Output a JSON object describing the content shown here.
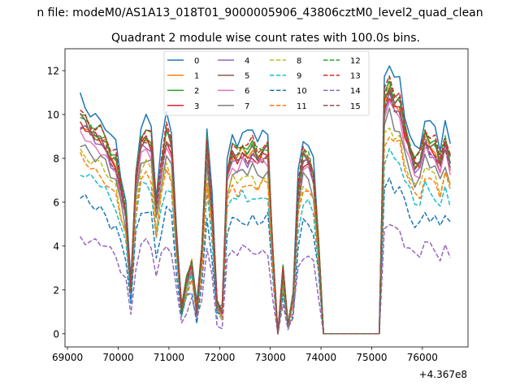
{
  "chart_data": {
    "type": "line",
    "suptitle": "n file: modeM0/AS1A13_018T01_9000005906_43806cztM0_level2_quad_clean",
    "title": "Quadrant 2 module wise count rates with 100.0s bins.",
    "xlabel": "",
    "ylabel": "",
    "x_offset_label": "+4.367e8",
    "xlim": [
      68950,
      76900
    ],
    "ylim": [
      -0.6,
      13
    ],
    "xticks": [
      69000,
      70000,
      71000,
      72000,
      73000,
      74000,
      75000,
      76000
    ],
    "yticks": [
      0,
      2,
      4,
      6,
      8,
      10,
      12
    ],
    "legend": {
      "placement": "top-center",
      "columns": 4
    },
    "x": [
      69250,
      69350,
      69450,
      69550,
      69650,
      69750,
      69850,
      69950,
      70050,
      70150,
      70250,
      70350,
      70450,
      70550,
      70650,
      70750,
      70850,
      70950,
      71050,
      71150,
      71250,
      71350,
      71450,
      71550,
      71650,
      71750,
      71850,
      71950,
      72050,
      72150,
      72250,
      72350,
      72450,
      72550,
      72650,
      72750,
      72850,
      72950,
      73050,
      73150,
      73250,
      73350,
      73450,
      73550,
      73650,
      73750,
      73850,
      73950,
      74050,
      74150,
      74250,
      74350,
      74450,
      74550,
      74650,
      74750,
      74850,
      74950,
      75050,
      75150,
      75250,
      75350,
      75450,
      75550,
      75650,
      75750,
      75850,
      75950,
      76050,
      76150,
      76250,
      76350,
      76450,
      76550
    ],
    "base_profile": [
      9.5,
      9.3,
      9.0,
      8.8,
      8.7,
      8.4,
      7.8,
      7.6,
      6.4,
      5.3,
      2.0,
      6.8,
      8.5,
      8.7,
      8.4,
      5.5,
      7.4,
      8.8,
      8.3,
      4.2,
      1.1,
      2.3,
      3.1,
      1.0,
      3.5,
      8.3,
      5.5,
      1.2,
      1.0,
      7.1,
      8.0,
      7.8,
      8.1,
      7.9,
      8.2,
      7.8,
      8.0,
      8.1,
      3.6,
      0.0,
      2.7,
      0.4,
      1.6,
      6.3,
      7.8,
      7.7,
      7.0,
      4.0,
      0.0,
      0.0,
      0.0,
      0.0,
      0.0,
      0.0,
      0.0,
      0.0,
      0.0,
      0.0,
      0.0,
      0.0,
      10.2,
      10.9,
      10.2,
      10.2,
      9.0,
      8.2,
      7.5,
      7.6,
      8.7,
      8.3,
      8.2,
      7.5,
      8.5,
      7.6
    ],
    "series": [
      {
        "name": "0",
        "color": "#1f77b4",
        "dash": "solid",
        "scale": 1.13,
        "noise": 0.25
      },
      {
        "name": "1",
        "color": "#ff7f0e",
        "dash": "solid",
        "scale": 1.02,
        "noise": 0.2
      },
      {
        "name": "2",
        "color": "#2ca02c",
        "dash": "solid",
        "scale": 1.06,
        "noise": 0.2
      },
      {
        "name": "3",
        "color": "#d62728",
        "dash": "solid",
        "scale": 1.01,
        "noise": 0.2
      },
      {
        "name": "4",
        "color": "#9467bd",
        "dash": "solid",
        "scale": 1.0,
        "noise": 0.2
      },
      {
        "name": "5",
        "color": "#8c564b",
        "dash": "solid",
        "scale": 1.03,
        "noise": 0.2
      },
      {
        "name": "6",
        "color": "#e377c2",
        "dash": "solid",
        "scale": 0.97,
        "noise": 0.2
      },
      {
        "name": "7",
        "color": "#7f7f7f",
        "dash": "solid",
        "scale": 0.92,
        "noise": 0.2
      },
      {
        "name": "8",
        "color": "#bcbd22",
        "dash": "dashed",
        "scale": 0.88,
        "noise": 0.2
      },
      {
        "name": "9",
        "color": "#17becf",
        "dash": "dashed",
        "scale": 0.78,
        "noise": 0.2
      },
      {
        "name": "10",
        "color": "#1f77b4",
        "dash": "dashed",
        "scale": 0.65,
        "noise": 0.2
      },
      {
        "name": "11",
        "color": "#ff7f0e",
        "dash": "dashed",
        "scale": 0.84,
        "noise": 0.2
      },
      {
        "name": "12",
        "color": "#2ca02c",
        "dash": "dashed",
        "scale": 1.05,
        "noise": 0.2
      },
      {
        "name": "13",
        "color": "#d62728",
        "dash": "dashed",
        "scale": 1.07,
        "noise": 0.2
      },
      {
        "name": "14",
        "color": "#9467bd",
        "dash": "dashed",
        "scale": 0.47,
        "noise": 0.2
      },
      {
        "name": "15",
        "color": "#8c564b",
        "dash": "dashed",
        "scale": 1.01,
        "noise": 0.2
      }
    ]
  }
}
